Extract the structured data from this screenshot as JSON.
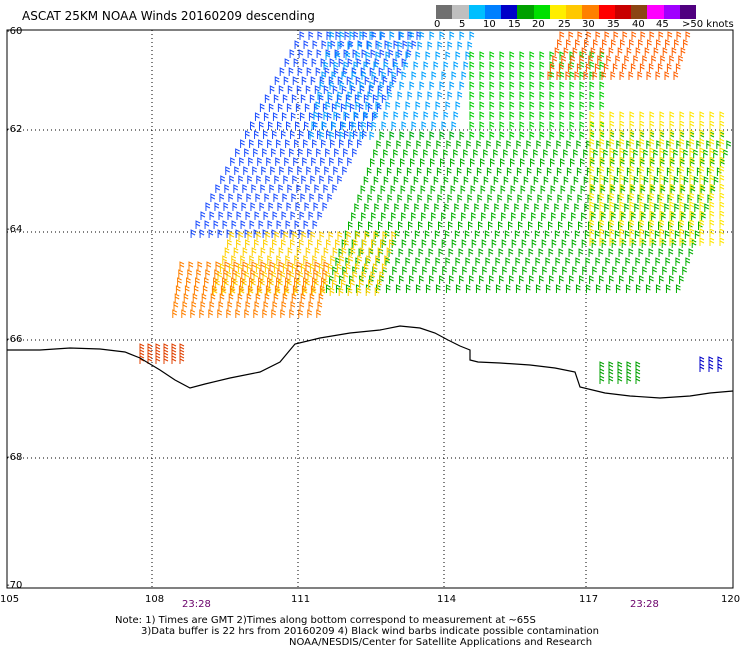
{
  "title": "ASCAT 25KM NOAA Winds 20160209 descending",
  "legend": {
    "colors": [
      "#707070",
      "#bfbfbf",
      "#00bfff",
      "#0080ff",
      "#0000c8",
      "#00a000",
      "#00e000",
      "#ffee00",
      "#ffc800",
      "#ff8000",
      "#ff0000",
      "#c80000",
      "#8b4513",
      "#ff00ff",
      "#a000ff",
      "#500080"
    ],
    "labels": [
      "0",
      "5",
      "10",
      "15",
      "20",
      "25",
      "30",
      "35",
      "40",
      "45",
      ">50 knots"
    ]
  },
  "axes": {
    "lat_labels": [
      "-60",
      "-62",
      "-64",
      "-66",
      "-68",
      "-70"
    ],
    "lon_labels": [
      "105",
      "108",
      "111",
      "114",
      "117",
      "120"
    ]
  },
  "times": [
    "23:28",
    "23:28"
  ],
  "notes": {
    "line1": "Note: 1) Times are GMT 2)Times along bottom correspond to measurement at ~65S",
    "line2": "3)Data buffer is 22 hrs from 20160209 4) Black wind barbs indicate possible contamination",
    "line3": "NOAA/NESDIS/Center for Satellite Applications and Research"
  }
}
